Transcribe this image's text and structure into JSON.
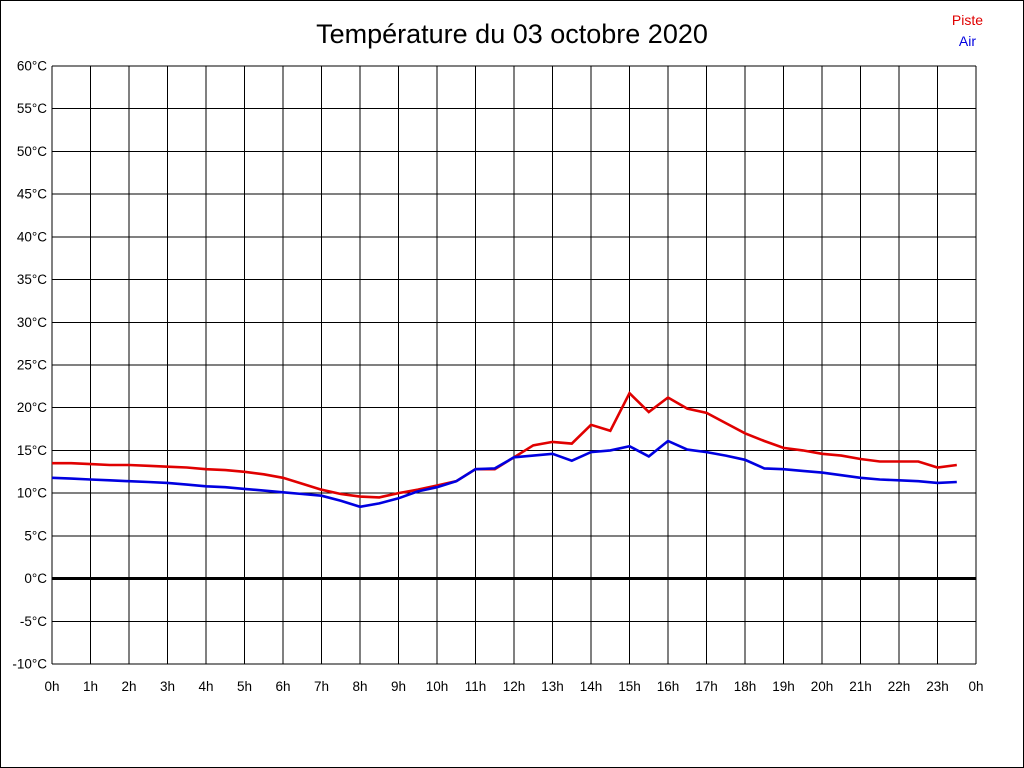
{
  "chart": {
    "title": "Température du 03 octobre 2020"
  },
  "chart_data": {
    "type": "line",
    "title": "Température du 03 octobre 2020",
    "xlabel": "",
    "ylabel": "",
    "xlim": [
      0,
      24
    ],
    "ylim": [
      -10,
      60
    ],
    "y_tick_step": 5,
    "grid": true,
    "legend_position": "top-right",
    "x_tick_labels": [
      "0h",
      "1h",
      "2h",
      "3h",
      "4h",
      "5h",
      "6h",
      "7h",
      "8h",
      "9h",
      "10h",
      "11h",
      "12h",
      "13h",
      "14h",
      "15h",
      "16h",
      "17h",
      "18h",
      "19h",
      "20h",
      "21h",
      "22h",
      "23h",
      "0h"
    ],
    "y_tick_labels": [
      "60°C",
      "55°C",
      "50°C",
      "45°C",
      "40°C",
      "35°C",
      "30°C",
      "25°C",
      "20°C",
      "15°C",
      "10°C",
      "5°C",
      "0°C",
      "-5°C",
      "-10°C"
    ],
    "zero_line": {
      "value": 0,
      "color": "#000000",
      "width": 3
    },
    "x": [
      0,
      0.5,
      1,
      1.5,
      2,
      2.5,
      3,
      3.5,
      4,
      4.5,
      5,
      5.5,
      6,
      6.5,
      7,
      7.5,
      8,
      8.5,
      9,
      9.5,
      10,
      10.5,
      11,
      11.5,
      12,
      12.5,
      13,
      13.5,
      14,
      14.5,
      15,
      15.5,
      16,
      16.5,
      17,
      17.5,
      18,
      18.5,
      19,
      19.5,
      20,
      20.5,
      21,
      21.5,
      22,
      22.5,
      23,
      23.5
    ],
    "series": [
      {
        "name": "Piste",
        "color": "#e00000",
        "values": [
          13.5,
          13.5,
          13.4,
          13.3,
          13.3,
          13.2,
          13.1,
          13.0,
          12.8,
          12.7,
          12.5,
          12.2,
          11.8,
          11.1,
          10.4,
          9.9,
          9.6,
          9.5,
          10.0,
          10.4,
          10.9,
          11.4,
          12.8,
          12.8,
          14.2,
          15.6,
          16.0,
          15.8,
          18.0,
          17.3,
          21.7,
          19.5,
          21.2,
          19.9,
          19.4,
          18.2,
          17.0,
          16.1,
          15.3,
          15.0,
          14.6,
          14.4,
          14.0,
          13.7,
          13.7,
          13.7,
          13.0,
          13.3
        ]
      },
      {
        "name": "Air",
        "color": "#0000e0",
        "values": [
          11.8,
          11.7,
          11.6,
          11.5,
          11.4,
          11.3,
          11.2,
          11.0,
          10.8,
          10.7,
          10.5,
          10.3,
          10.1,
          9.9,
          9.7,
          9.1,
          8.4,
          8.8,
          9.4,
          10.2,
          10.7,
          11.4,
          12.8,
          12.9,
          14.2,
          14.4,
          14.6,
          13.8,
          14.8,
          15.0,
          15.5,
          14.3,
          16.1,
          15.1,
          14.8,
          14.4,
          13.9,
          12.9,
          12.8,
          12.6,
          12.4,
          12.1,
          11.8,
          11.6,
          11.5,
          11.4,
          11.2,
          11.3
        ]
      }
    ],
    "legend": [
      {
        "label": "Piste",
        "color": "#e00000"
      },
      {
        "label": "Air",
        "color": "#0000e0"
      }
    ]
  }
}
